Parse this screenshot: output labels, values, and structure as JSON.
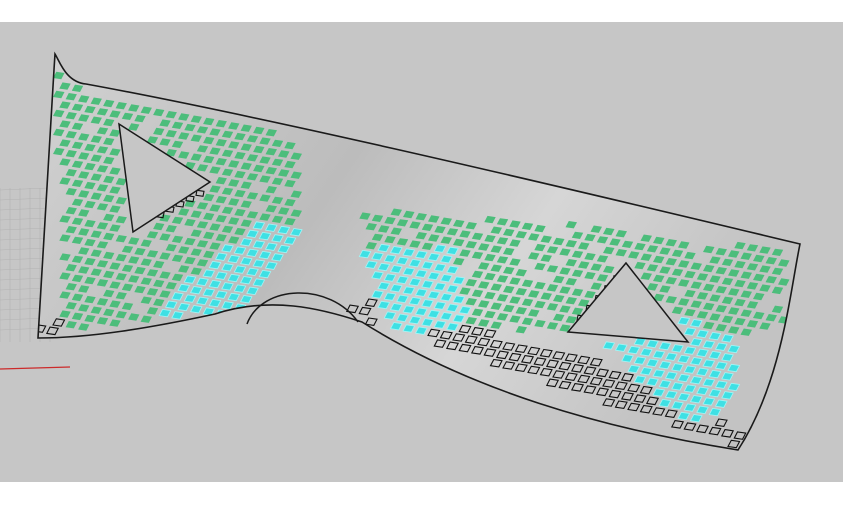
{
  "scene": {
    "viewport_name": "perspective-3d-viewport",
    "background_color": "#c6c6c6",
    "surface_fill": "#bcbcbc",
    "surface_highlight": "#e6e6e6",
    "outline_color": "#1a1a1a",
    "grid_color": "#b2b2b2",
    "axis_x_color": "#cc2a2a",
    "panel_colors": {
      "green": "#4cbd7b",
      "cyan": "#3fe0e4",
      "outline": "#111111",
      "cyan_edge": "#9ff7f7"
    },
    "openings": [
      "triangle-opening-left",
      "arch-opening-center",
      "triangle-opening-right"
    ],
    "panel_types": [
      "green-panel",
      "cyan-panel",
      "outlined-panel"
    ]
  }
}
